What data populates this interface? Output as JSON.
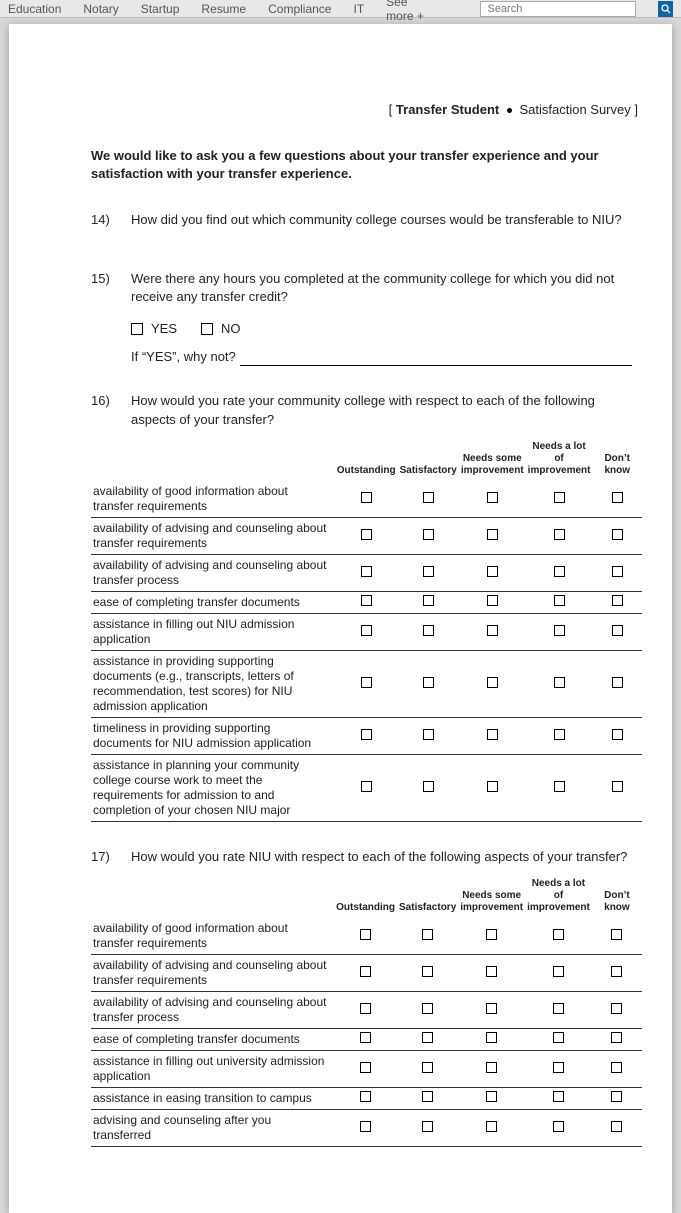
{
  "nav": {
    "items": [
      "Education",
      "Notary",
      "Startup",
      "Resume",
      "Compliance",
      "IT",
      "See more +"
    ],
    "search_placeholder": "Search"
  },
  "title": {
    "bold": "Transfer Student",
    "rest": "Satisfaction Survey",
    "open": "[",
    "close": "]"
  },
  "intro": "We would like to ask you a few questions about your transfer experience and your satisfaction with your transfer experience.",
  "q14": {
    "num": "14)",
    "text": "How did you find out which community college courses would be transferable to NIU?"
  },
  "q15": {
    "num": "15)",
    "text": "Were there any hours you completed at the community college for which you did not receive any transfer credit?",
    "yes": "YES",
    "no": "NO",
    "whynot": "If “YES”, why not?"
  },
  "q16": {
    "num": "16)",
    "text": "How would you rate your community college with respect to each of the following aspects of your transfer?"
  },
  "q17": {
    "num": "17)",
    "text": "How would you rate NIU with respect to each of the following aspects of your transfer?"
  },
  "headers": {
    "outstanding": "Outstanding",
    "satisfactory": "Satisfactory",
    "needs_some": "Needs some improvement",
    "needs_lot": "Needs a lot of improvement",
    "dont_know": "Don’t know"
  },
  "rows16": [
    "availability of good information about transfer requirements",
    "availability of advising and counseling about transfer requirements",
    "availability of advising and counseling about transfer process",
    "ease of completing transfer documents",
    "assistance in filling out NIU admission application",
    "assistance in providing supporting documents (e.g., transcripts, letters of recommendation, test scores) for NIU admission application",
    "timeliness in providing supporting documents for NIU admission application",
    "assistance in planning your community college course work to meet the requirements for admission to and completion of your chosen NIU major"
  ],
  "rows17": [
    "availability of good information about transfer requirements",
    "availability of advising and counseling about transfer requirements",
    "availability of advising and counseling about transfer process",
    "ease of completing transfer documents",
    "assistance in filling out university admission application",
    "assistance in easing transition to campus",
    "advising and counseling after you transferred"
  ],
  "colors": {
    "page_bg": "#ffffff",
    "body_bg": "#d8d8d8",
    "text": "#222222",
    "border": "#333333"
  }
}
